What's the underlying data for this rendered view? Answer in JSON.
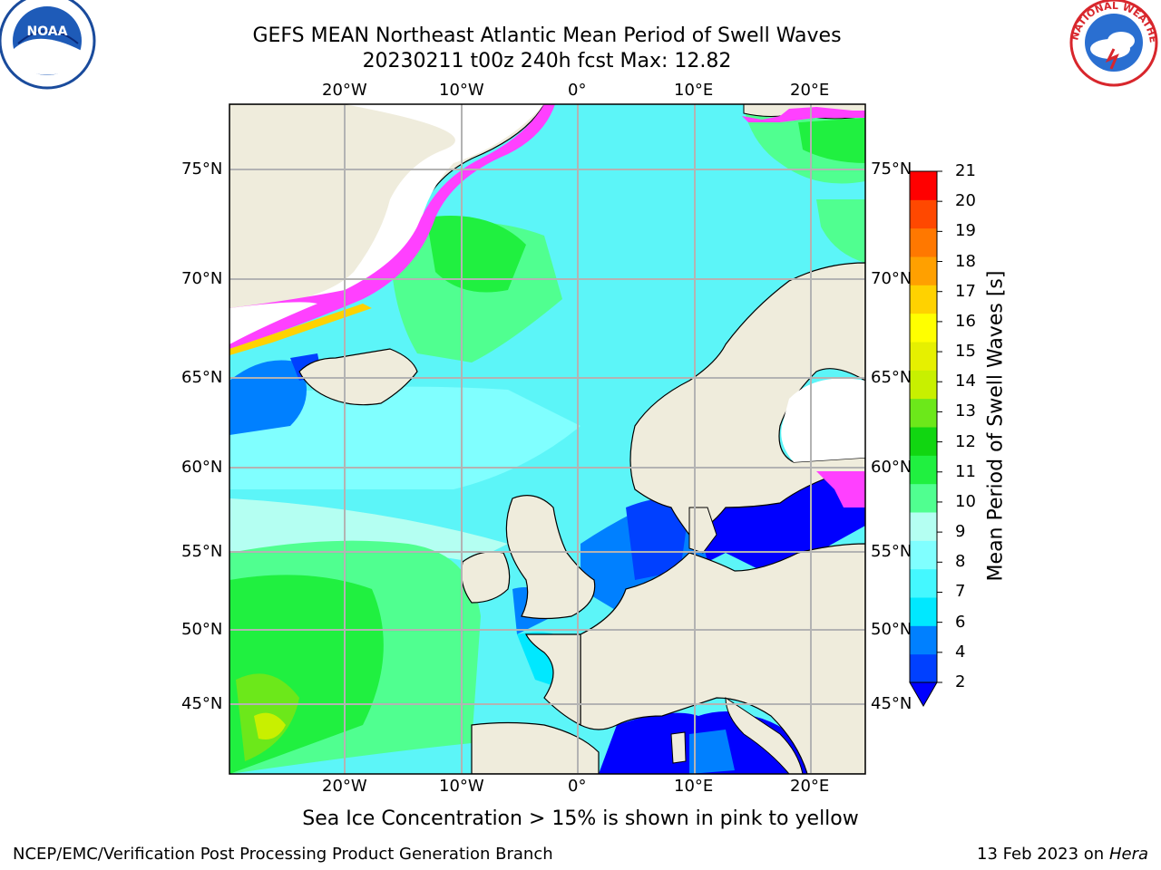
{
  "header": {
    "title_line1": "GEFS MEAN Northeast Atlantic Mean Period of Swell Waves",
    "title_line2": "20230211 t00z 240h fcst   Max: 12.82"
  },
  "logos": {
    "left": "NOAA",
    "right": "NATIONAL WEATHER SERVICE"
  },
  "map": {
    "lon_labels_top": [
      "20°W",
      "10°W",
      "0°",
      "10°E",
      "20°E"
    ],
    "lon_labels_bottom": [
      "20°W",
      "10°W",
      "0°",
      "10°E",
      "20°E"
    ],
    "lat_labels_left": [
      "75°N",
      "70°N",
      "65°N",
      "60°N",
      "55°N",
      "50°N",
      "45°N"
    ],
    "lat_labels_right": [
      "75°N",
      "70°N",
      "65°N",
      "60°N",
      "55°N",
      "50°N",
      "45°N"
    ],
    "colors": {
      "land": "#efecdc",
      "ocean": "#5cf5f8",
      "grid": "#b3b3b3"
    }
  },
  "colorbar": {
    "label": "Mean Period of Swell Waves [s]",
    "ticks": [
      "2",
      "4",
      "6",
      "7",
      "8",
      "9",
      "10",
      "11",
      "12",
      "13",
      "14",
      "15",
      "16",
      "17",
      "18",
      "19",
      "20",
      "21"
    ],
    "colors": [
      "#0040ff",
      "#0080ff",
      "#00e8ff",
      "#44f8ff",
      "#80ffff",
      "#b4fff2",
      "#50ff90",
      "#20f040",
      "#11d611",
      "#6ce81a",
      "#c8f000",
      "#e6f000",
      "#ffff00",
      "#ffd200",
      "#ffa000",
      "#ff7800",
      "#ff4800",
      "#ff0000"
    ],
    "under_color": "#0000ff"
  },
  "note": "Sea Ice Concentration > 15% is shown in pink to yellow",
  "footer": {
    "left": "NCEP/EMC/Verification Post Processing Product Generation Branch",
    "right_date": "13 Feb 2023 on",
    "right_machine": "Hera"
  }
}
